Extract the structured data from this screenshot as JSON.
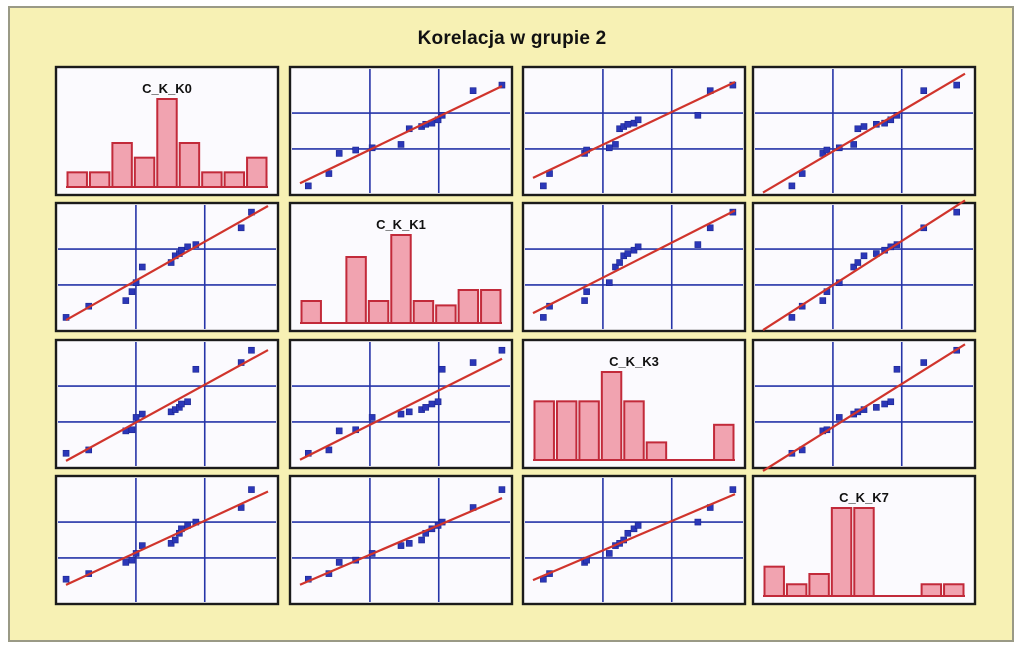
{
  "title": "Korelacja w grupie 2",
  "colors": {
    "background": "#f7f1b4",
    "grid": "#2634a8",
    "points": "#2b37b8",
    "fit_line": "#d0342c",
    "hist_bar": "#f1a3b0"
  },
  "chart_data": {
    "type": "scatter",
    "title": "Korelacja w grupie 2",
    "variables": [
      "C_K_K0",
      "C_K_K1",
      "C_K_K3",
      "C_K_K7"
    ],
    "grid": true,
    "histograms": [
      {
        "variable": "C_K_K0",
        "counts": [
          1,
          1,
          3,
          2,
          6,
          3,
          1,
          1,
          2
        ]
      },
      {
        "variable": "C_K_K1",
        "counts": [
          1,
          0,
          3,
          1,
          4,
          1,
          0.8,
          1.5,
          1.5
        ]
      },
      {
        "variable": "C_K_K3",
        "counts": [
          2,
          2,
          2,
          3,
          2,
          0.6,
          0,
          0,
          1.2
        ]
      },
      {
        "variable": "C_K_K7",
        "counts": [
          2,
          0.8,
          1.5,
          6,
          6,
          0,
          0,
          0.8,
          0.8
        ]
      }
    ],
    "scatter_values": {
      "C_K_K0": [
        0.01,
        0.12,
        0.3,
        0.33,
        0.35,
        0.38,
        0.52,
        0.54,
        0.56,
        0.57,
        0.6,
        0.64,
        0.86,
        0.91
      ],
      "C_K_K1": [
        0.05,
        0.15,
        0.2,
        0.28,
        0.36,
        0.5,
        0.54,
        0.6,
        0.62,
        0.65,
        0.68,
        0.7,
        0.85,
        0.99
      ],
      "C_K_K3": [
        0.06,
        0.09,
        0.26,
        0.27,
        0.38,
        0.41,
        0.43,
        0.45,
        0.47,
        0.5,
        0.52,
        0.81,
        0.87,
        0.98
      ],
      "C_K_K7": [
        0.15,
        0.2,
        0.3,
        0.32,
        0.38,
        0.45,
        0.47,
        0.5,
        0.56,
        0.6,
        0.63,
        0.66,
        0.79,
        0.95
      ]
    }
  }
}
